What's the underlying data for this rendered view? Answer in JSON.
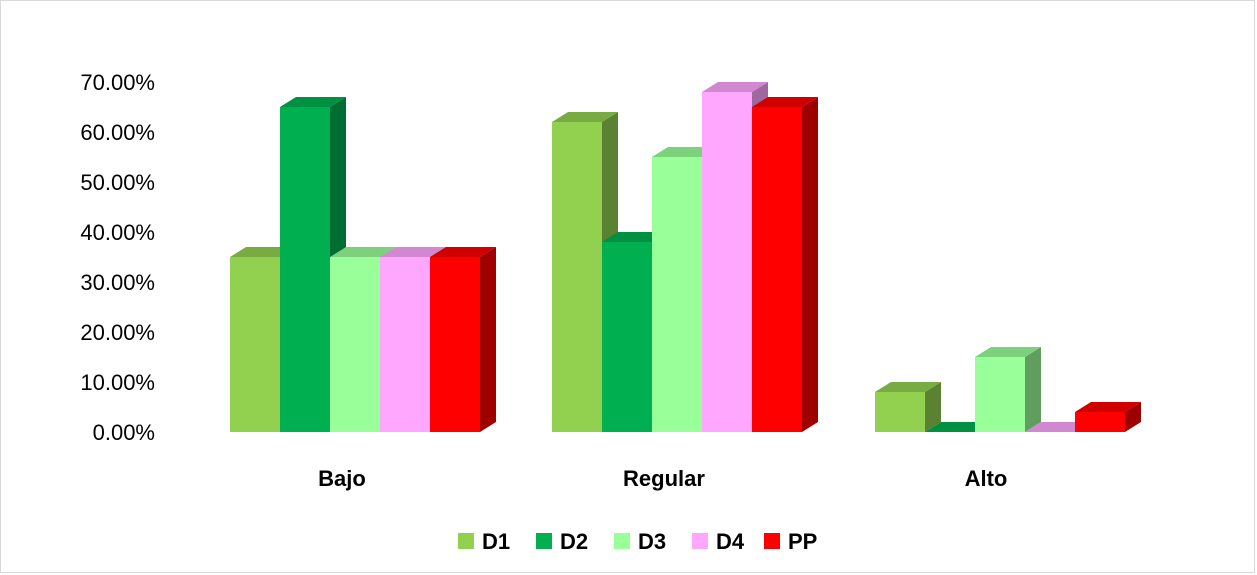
{
  "chart_data": {
    "type": "bar",
    "style": "3d-clustered-column",
    "categories": [
      "Bajo",
      "Regular",
      "Alto"
    ],
    "series": [
      {
        "name": "D1",
        "color": "#92d050",
        "values": [
          0.35,
          0.62,
          0.08
        ]
      },
      {
        "name": "D2",
        "color": "#00b050",
        "values": [
          0.65,
          0.38,
          0.0
        ]
      },
      {
        "name": "D3",
        "color": "#99ff99",
        "values": [
          0.35,
          0.55,
          0.15
        ]
      },
      {
        "name": "D4",
        "color": "#ffa6ff",
        "values": [
          0.35,
          0.68,
          0.0
        ]
      },
      {
        "name": "PP",
        "color": "#ff0000",
        "values": [
          0.35,
          0.65,
          0.04
        ]
      }
    ],
    "ylim": [
      0,
      0.7
    ],
    "yticks": [
      0,
      0.1,
      0.2,
      0.3,
      0.4,
      0.5,
      0.6,
      0.7
    ],
    "ytick_labels": [
      "0.00%",
      "10.00%",
      "20.00%",
      "30.00%",
      "40.00%",
      "50.00%",
      "60.00%",
      "70.00%"
    ],
    "title": "",
    "xlabel": "",
    "ylabel": "",
    "grid": false,
    "legend_position": "bottom"
  }
}
